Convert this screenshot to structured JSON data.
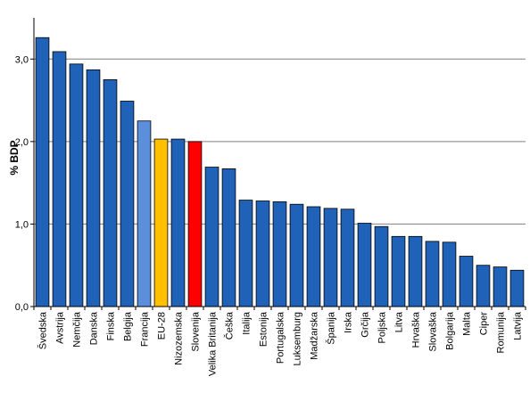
{
  "chart_data": {
    "type": "bar",
    "ylabel": "% BDP",
    "ylim": [
      0,
      3.5
    ],
    "yticks": [
      "0,0",
      "1,0",
      "2,0",
      "3,0"
    ],
    "grid": true,
    "categories": [
      "Švedska",
      "Avstrija",
      "Nemčija",
      "Danska",
      "Finska",
      "Belgija",
      "Francija",
      "EU-28",
      "Nizozemska",
      "Slovenija",
      "Velika Britanija",
      "Češka",
      "Italija",
      "Estonija",
      "Portugalska",
      "Luksemburg",
      "Madžarska",
      "Španija",
      "Irska",
      "Grčija",
      "Poljska",
      "Litva",
      "Hrvaška",
      "Slovaška",
      "Bolgarija",
      "Malta",
      "Ciper",
      "Romunija",
      "Latvija"
    ],
    "values": [
      3.26,
      3.09,
      2.94,
      2.87,
      2.75,
      2.49,
      2.25,
      2.03,
      2.03,
      2.0,
      1.69,
      1.67,
      1.29,
      1.28,
      1.27,
      1.24,
      1.21,
      1.19,
      1.18,
      1.01,
      0.97,
      0.85,
      0.85,
      0.79,
      0.78,
      0.61,
      0.5,
      0.48,
      0.44
    ],
    "colors": {
      "default": "#1f62b8",
      "Francija": "#5b8edb",
      "EU-28": "#ffc000",
      "Slovenija": "#ff0000",
      "edge": "#000000",
      "grid": "#808080"
    }
  }
}
